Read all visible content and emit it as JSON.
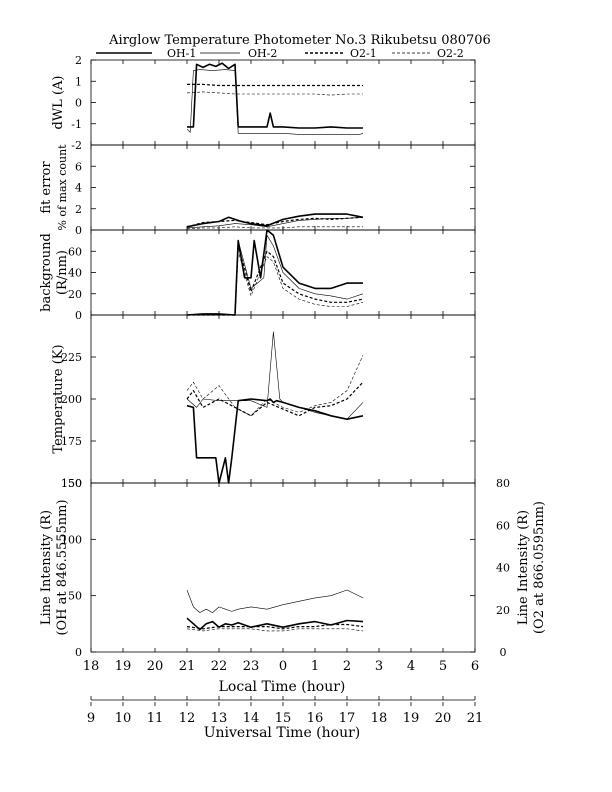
{
  "title": "Airglow Temperature Photometer No.3  Rikubetsu  080706",
  "legend": [
    {
      "label": "OH-1",
      "style": "solid-thick"
    },
    {
      "label": "OH-2",
      "style": "solid-thin"
    },
    {
      "label": "O2-1",
      "style": "dashed-thick"
    },
    {
      "label": "O2-2",
      "style": "dashed-thin"
    }
  ],
  "x_axes": {
    "local": {
      "label": "Local Time (hour)",
      "ticks": [
        "18",
        "19",
        "20",
        "21",
        "22",
        "23",
        "0",
        "1",
        "2",
        "3",
        "4",
        "5",
        "6"
      ]
    },
    "ut": {
      "label": "Universal Time (hour)",
      "ticks": [
        "9",
        "10",
        "11",
        "12",
        "13",
        "14",
        "15",
        "16",
        "17",
        "18",
        "19",
        "20",
        "21"
      ]
    }
  },
  "chart_data": [
    {
      "type": "line",
      "panel": "dwl",
      "ylabel": "dWL (A)",
      "ylim": [
        -2,
        2
      ],
      "yticks": [
        "2",
        "1",
        "0",
        "-1",
        "-2"
      ],
      "series": [
        {
          "name": "OH-1",
          "x": [
            12.0,
            12.1,
            12.2,
            12.3,
            12.5,
            12.7,
            12.9,
            13.1,
            13.3,
            13.5,
            13.6,
            13.9,
            14.2,
            14.5,
            14.6,
            14.7,
            14.8,
            15.0,
            15.5,
            16.0,
            16.5,
            17.0,
            17.5
          ],
          "y": [
            -1.15,
            -1.15,
            -1.15,
            1.8,
            1.65,
            1.8,
            1.7,
            1.85,
            1.6,
            1.8,
            -1.15,
            -1.15,
            -1.15,
            -1.15,
            -0.5,
            -1.15,
            -1.15,
            -1.15,
            -1.2,
            -1.2,
            -1.15,
            -1.2,
            -1.2
          ]
        },
        {
          "name": "OH-2",
          "x": [
            12.0,
            12.1,
            12.2,
            12.4,
            12.8,
            13.2,
            13.5,
            13.6,
            14.0,
            14.5,
            15.0,
            15.5,
            16.0,
            16.5,
            17.0,
            17.4,
            17.5
          ],
          "y": [
            -1.25,
            -1.4,
            1.5,
            1.55,
            1.5,
            1.55,
            1.5,
            -1.45,
            -1.45,
            -1.45,
            -1.45,
            -1.5,
            -1.5,
            -1.5,
            -1.5,
            -1.5,
            -1.45
          ]
        },
        {
          "name": "O2-1",
          "x": [
            12.0,
            12.5,
            13.0,
            13.5,
            14.0,
            14.5,
            15.0,
            15.5,
            16.0,
            16.5,
            17.0,
            17.5
          ],
          "y": [
            0.85,
            0.85,
            0.8,
            0.8,
            0.8,
            0.8,
            0.8,
            0.8,
            0.8,
            0.8,
            0.8,
            0.8
          ]
        },
        {
          "name": "O2-2",
          "x": [
            12.0,
            12.5,
            13.0,
            13.5,
            14.0,
            14.5,
            15.0,
            15.5,
            16.0,
            16.5,
            17.0,
            17.5
          ],
          "y": [
            0.45,
            0.5,
            0.45,
            0.4,
            0.4,
            0.4,
            0.4,
            0.4,
            0.4,
            0.35,
            0.4,
            0.4
          ]
        }
      ]
    },
    {
      "type": "line",
      "panel": "fit_error",
      "ylabel": "fit error",
      "ylabel2": "% of max count",
      "ylim": [
        0,
        8
      ],
      "yticks": [
        "6",
        "4",
        "2",
        "0"
      ],
      "series": [
        {
          "name": "OH-1",
          "x": [
            12.0,
            12.5,
            13.0,
            13.3,
            13.5,
            13.7,
            14.0,
            14.5,
            15.0,
            15.5,
            16.0,
            16.5,
            17.0,
            17.5
          ],
          "y": [
            0.3,
            0.6,
            0.8,
            1.2,
            1.0,
            0.8,
            0.6,
            0.4,
            1.0,
            1.3,
            1.5,
            1.5,
            1.5,
            1.2
          ]
        },
        {
          "name": "OH-2",
          "x": [
            12.0,
            12.5,
            13.0,
            13.5,
            14.0,
            14.5,
            15.0,
            15.5,
            16.0,
            16.5,
            17.0,
            17.5
          ],
          "y": [
            0.2,
            0.3,
            0.4,
            0.6,
            0.5,
            0.3,
            0.6,
            0.9,
            1.0,
            1.1,
            1.1,
            1.2
          ]
        },
        {
          "name": "O2-1",
          "x": [
            12.0,
            12.5,
            13.0,
            13.5,
            14.0,
            14.5,
            15.0,
            15.5,
            16.0,
            16.5,
            17.0,
            17.5
          ],
          "y": [
            0.3,
            0.7,
            0.8,
            0.9,
            0.7,
            0.5,
            0.8,
            1.0,
            1.1,
            1.0,
            1.1,
            1.2
          ]
        },
        {
          "name": "O2-2",
          "x": [
            12.0,
            12.5,
            13.0,
            13.5,
            14.0,
            14.5,
            15.0,
            15.5,
            16.0,
            16.5,
            17.0,
            17.5
          ],
          "y": [
            0.1,
            0.2,
            0.2,
            0.3,
            0.2,
            0.2,
            0.2,
            0.3,
            0.3,
            0.3,
            0.3,
            0.3
          ]
        }
      ]
    },
    {
      "type": "line",
      "panel": "background",
      "ylabel": "background",
      "ylabel2": "(R/nm)",
      "ylim": [
        0,
        80
      ],
      "yticks": [
        "60",
        "40",
        "20",
        "0"
      ],
      "series": [
        {
          "name": "OH-1",
          "x": [
            12.0,
            12.5,
            13.0,
            13.5,
            13.6,
            13.8,
            14.0,
            14.1,
            14.3,
            14.5,
            14.7,
            15.0,
            15.5,
            16.0,
            16.5,
            17.0,
            17.5
          ],
          "y": [
            0,
            1,
            1,
            0,
            70,
            35,
            35,
            70,
            35,
            80,
            75,
            45,
            30,
            25,
            25,
            30,
            30
          ]
        },
        {
          "name": "OH-2",
          "x": [
            12.0,
            12.5,
            13.0,
            13.5,
            13.6,
            14.0,
            14.2,
            14.4,
            14.5,
            14.7,
            15.0,
            15.5,
            16.0,
            16.5,
            17.0,
            17.5
          ],
          "y": [
            0,
            0,
            0,
            0,
            70,
            25,
            30,
            35,
            75,
            65,
            40,
            25,
            20,
            18,
            15,
            20
          ]
        },
        {
          "name": "O2-1",
          "x": [
            12.0,
            12.5,
            13.0,
            13.5,
            13.6,
            14.0,
            14.5,
            14.7,
            15.0,
            15.5,
            16.0,
            16.5,
            17.0,
            17.5
          ],
          "y": [
            0,
            0,
            0,
            0,
            65,
            22,
            60,
            55,
            30,
            20,
            15,
            12,
            12,
            15
          ]
        },
        {
          "name": "O2-2",
          "x": [
            12.0,
            12.5,
            13.0,
            13.5,
            13.6,
            14.0,
            14.5,
            14.7,
            15.0,
            15.5,
            16.0,
            16.5,
            17.0,
            17.5
          ],
          "y": [
            0,
            0,
            0,
            0,
            60,
            18,
            55,
            50,
            25,
            15,
            10,
            8,
            8,
            12
          ]
        }
      ]
    },
    {
      "type": "line",
      "panel": "temperature",
      "ylabel": "Temperature (K)",
      "ylim": [
        150,
        250
      ],
      "yticks": [
        "225",
        "200",
        "175",
        "150"
      ],
      "series": [
        {
          "name": "OH-1",
          "x": [
            12.0,
            12.2,
            12.3,
            12.9,
            13.0,
            13.2,
            13.3,
            13.4,
            13.6,
            14.0,
            14.5,
            14.6,
            14.7,
            14.8,
            15.0,
            15.5,
            16.0,
            16.5,
            17.0,
            17.5
          ],
          "y": [
            196,
            195,
            165,
            165,
            150,
            165,
            150,
            165,
            199,
            200,
            199,
            200,
            198,
            199,
            198,
            195,
            193,
            190,
            188,
            190
          ]
        },
        {
          "name": "OH-2",
          "x": [
            12.0,
            12.3,
            12.5,
            13.0,
            13.5,
            14.0,
            14.5,
            14.7,
            14.8,
            14.9,
            15.0,
            15.5,
            16.0,
            16.5,
            17.0,
            17.5
          ],
          "y": [
            200,
            195,
            200,
            199,
            199,
            199,
            195,
            240,
            220,
            200,
            198,
            195,
            192,
            190,
            188,
            198
          ]
        },
        {
          "name": "O2-1",
          "x": [
            12.0,
            12.2,
            12.5,
            13.0,
            13.5,
            14.0,
            14.5,
            15.0,
            15.5,
            16.0,
            16.5,
            17.0,
            17.5
          ],
          "y": [
            200,
            205,
            195,
            200,
            195,
            190,
            198,
            194,
            190,
            195,
            196,
            200,
            210
          ]
        },
        {
          "name": "O2-2",
          "x": [
            12.0,
            12.2,
            12.5,
            13.0,
            13.5,
            14.0,
            14.5,
            15.0,
            15.5,
            16.0,
            16.5,
            17.0,
            17.5
          ],
          "y": [
            205,
            210,
            200,
            208,
            195,
            190,
            200,
            195,
            192,
            196,
            198,
            205,
            226
          ]
        }
      ]
    },
    {
      "type": "line",
      "panel": "line_intensity",
      "ylabel": "Line Intensity (R)",
      "ylabel2": "(OH at 846.5555nm)",
      "ylim": [
        0,
        150
      ],
      "yticks": [
        "150",
        "100",
        "50",
        "0"
      ],
      "y2label": "Line Intensity (R)",
      "y2label2": "(O2 at 866.0595nm)",
      "y2lim": [
        0,
        80
      ],
      "y2ticks": [
        "80",
        "60",
        "40",
        "20",
        "0"
      ],
      "series": [
        {
          "name": "OH-1",
          "x": [
            12.0,
            12.2,
            12.4,
            12.6,
            12.8,
            13.0,
            13.2,
            13.4,
            13.6,
            14.0,
            14.5,
            15.0,
            15.5,
            16.0,
            16.5,
            17.0,
            17.5
          ],
          "y": [
            30,
            25,
            20,
            25,
            27,
            22,
            25,
            24,
            26,
            22,
            25,
            22,
            25,
            27,
            24,
            28,
            27
          ]
        },
        {
          "name": "OH-2",
          "x": [
            12.0,
            12.2,
            12.4,
            12.6,
            12.8,
            13.0,
            13.2,
            13.4,
            13.6,
            14.0,
            14.5,
            15.0,
            15.5,
            16.0,
            16.5,
            17.0,
            17.5
          ],
          "y": [
            55,
            40,
            35,
            38,
            35,
            40,
            38,
            36,
            38,
            40,
            38,
            42,
            45,
            48,
            50,
            55,
            48
          ]
        },
        {
          "name": "O2-1",
          "x": [
            12.0,
            12.5,
            13.0,
            13.5,
            14.0,
            14.5,
            15.0,
            15.5,
            16.0,
            16.5,
            17.0,
            17.5
          ],
          "y": [
            12,
            11,
            12,
            12,
            12,
            12,
            11,
            12,
            12,
            13,
            13,
            12
          ]
        },
        {
          "name": "O2-2",
          "x": [
            12.0,
            12.5,
            13.0,
            13.5,
            14.0,
            14.5,
            15.0,
            15.5,
            16.0,
            16.5,
            17.0,
            17.5
          ],
          "y": [
            11,
            10,
            11,
            11,
            11,
            10,
            10,
            11,
            11,
            11,
            11,
            10
          ]
        }
      ]
    }
  ]
}
